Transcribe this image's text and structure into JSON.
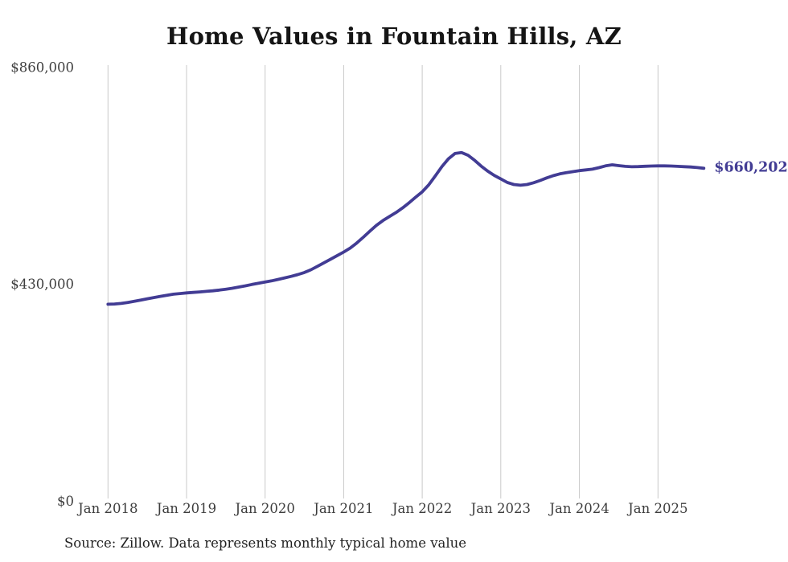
{
  "header": {
    "title": "Home Values in Fountain Hills, AZ"
  },
  "footer": {
    "source": "Source: Zillow. Data represents monthly typical home value"
  },
  "chart_data": {
    "type": "line",
    "title": "Home Values in Fountain Hills, AZ",
    "unit": "USD",
    "frequency": "monthly",
    "x_start": "Jan 2018",
    "x_end": "Aug 2025",
    "x_tick_labels": [
      "Jan 2018",
      "Jan 2019",
      "Jan 2020",
      "Jan 2021",
      "Jan 2022",
      "Jan 2023",
      "Jan 2024",
      "Jan 2025"
    ],
    "y_ticks": [
      {
        "value": 0,
        "label": "$0"
      },
      {
        "value": 430000,
        "label": "$430,000"
      },
      {
        "value": 860000,
        "label": "$860,000"
      }
    ],
    "ylim": [
      0,
      860000
    ],
    "grid": "vertical-only",
    "legend": "none",
    "line_color": "#423c94",
    "grid_color": "#c9c9c9",
    "end_label": "$660,202",
    "final_value": 660202,
    "series": [
      {
        "name": "Typical home value",
        "values": [
          390500,
          391000,
          392200,
          394000,
          396200,
          398700,
          401300,
          403800,
          406200,
          408400,
          410400,
          411800,
          413000,
          414000,
          415000,
          416000,
          417200,
          418600,
          420300,
          422300,
          424600,
          427100,
          429700,
          432200,
          434500,
          437000,
          439800,
          442800,
          445900,
          449300,
          453500,
          459000,
          465800,
          472800,
          479900,
          487000,
          494000,
          502000,
          512000,
          523500,
          535500,
          547000,
          556500,
          564500,
          572500,
          581500,
          592000,
          603000,
          613500,
          627500,
          645000,
          663500,
          679000,
          689500,
          691500,
          686000,
          676000,
          664500,
          654500,
          646000,
          639000,
          632000,
          628000,
          626500,
          628000,
          631500,
          636000,
          641000,
          645500,
          649000,
          651500,
          653500,
          655500,
          657000,
          658500,
          661500,
          665000,
          667000,
          665500,
          664000,
          663200,
          663600,
          664200,
          664700,
          665000,
          665000,
          664600,
          664000,
          663400,
          662800,
          661600,
          660202
        ]
      }
    ]
  }
}
